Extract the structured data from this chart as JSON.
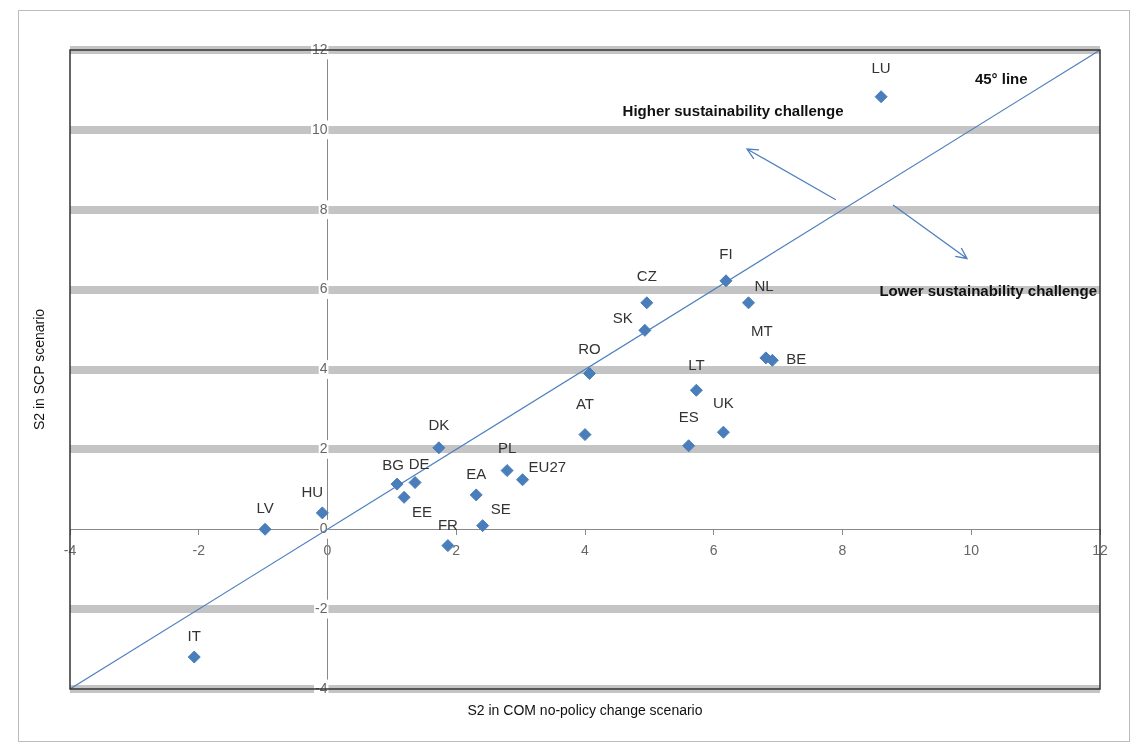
{
  "chart_data": {
    "type": "scatter",
    "xlabel": "S2 in COM no-policy change scenario",
    "ylabel": "S2 in SCP scenario",
    "xlim": [
      -4,
      12
    ],
    "xticks": [
      -4,
      -2,
      0,
      2,
      4,
      6,
      8,
      10,
      12
    ],
    "ylim": [
      -4,
      12
    ],
    "yticks": [
      -4,
      -2,
      0,
      2,
      4,
      6,
      8,
      10,
      12
    ],
    "grid": "y",
    "legend": false,
    "marker": "diamond",
    "series": [
      {
        "color": "#4a7ebb",
        "x": [
          -2.07,
          -0.97,
          -0.08,
          1.08,
          1.36,
          1.19,
          1.73,
          1.87,
          2.31,
          2.41,
          2.79,
          3.03,
          4.0,
          4.07,
          5.73,
          5.61,
          6.15,
          4.93,
          4.96,
          6.19,
          6.54,
          6.81,
          6.91,
          8.6
        ],
        "values": [
          -3.2,
          0,
          0.41,
          1.13,
          1.17,
          0.8,
          2.04,
          -0.41,
          0.86,
          0.09,
          1.47,
          1.24,
          2.37,
          3.9,
          3.48,
          2.09,
          2.43,
          4.98,
          5.67,
          6.22,
          5.67,
          4.29,
          4.23,
          10.83
        ]
      },
      {
        "type": "line",
        "color": "#4f81bd",
        "marker": "none",
        "x": [
          -4,
          12
        ],
        "values": [
          -4,
          12
        ]
      }
    ],
    "annotations": [
      {
        "text": "IT",
        "x": -2.07,
        "y": -3.2
      },
      {
        "text": "LV",
        "x": -0.97,
        "y": 0
      },
      {
        "text": "HU",
        "x": -0.08,
        "y": 0.41
      },
      {
        "text": "BG",
        "x": 1.08,
        "y": 1.13
      },
      {
        "text": "DE",
        "x": 1.36,
        "y": 1.17
      },
      {
        "text": "EE",
        "x": 1.19,
        "y": 0.8
      },
      {
        "text": "DK",
        "x": 1.73,
        "y": 2.04
      },
      {
        "text": "FR",
        "x": 1.87,
        "y": -0.41
      },
      {
        "text": "EA",
        "x": 2.31,
        "y": 0.86
      },
      {
        "text": "SE",
        "x": 2.41,
        "y": 0.09
      },
      {
        "text": "PL",
        "x": 2.79,
        "y": 1.47
      },
      {
        "text": "EU27",
        "x": 3.03,
        "y": 1.24
      },
      {
        "text": "AT",
        "x": 4.0,
        "y": 2.37
      },
      {
        "text": "RO",
        "x": 4.07,
        "y": 3.9
      },
      {
        "text": "LT",
        "x": 5.73,
        "y": 3.48
      },
      {
        "text": "ES",
        "x": 5.61,
        "y": 2.09
      },
      {
        "text": "UK",
        "x": 6.15,
        "y": 2.43
      },
      {
        "text": "SK",
        "x": 4.93,
        "y": 4.98
      },
      {
        "text": "CZ",
        "x": 4.96,
        "y": 5.67
      },
      {
        "text": "FI",
        "x": 6.19,
        "y": 6.22
      },
      {
        "text": "NL",
        "x": 6.54,
        "y": 5.67
      },
      {
        "text": "MT",
        "x": 6.81,
        "y": 4.29
      },
      {
        "text": "BE",
        "x": 6.91,
        "y": 4.23
      },
      {
        "text": "LU",
        "x": 8.6,
        "y": 10.83
      },
      {
        "text": "45° line",
        "x": 11,
        "y": 11
      },
      "Higher sustainability challenge",
      "Lower sustainability challenge"
    ]
  }
}
